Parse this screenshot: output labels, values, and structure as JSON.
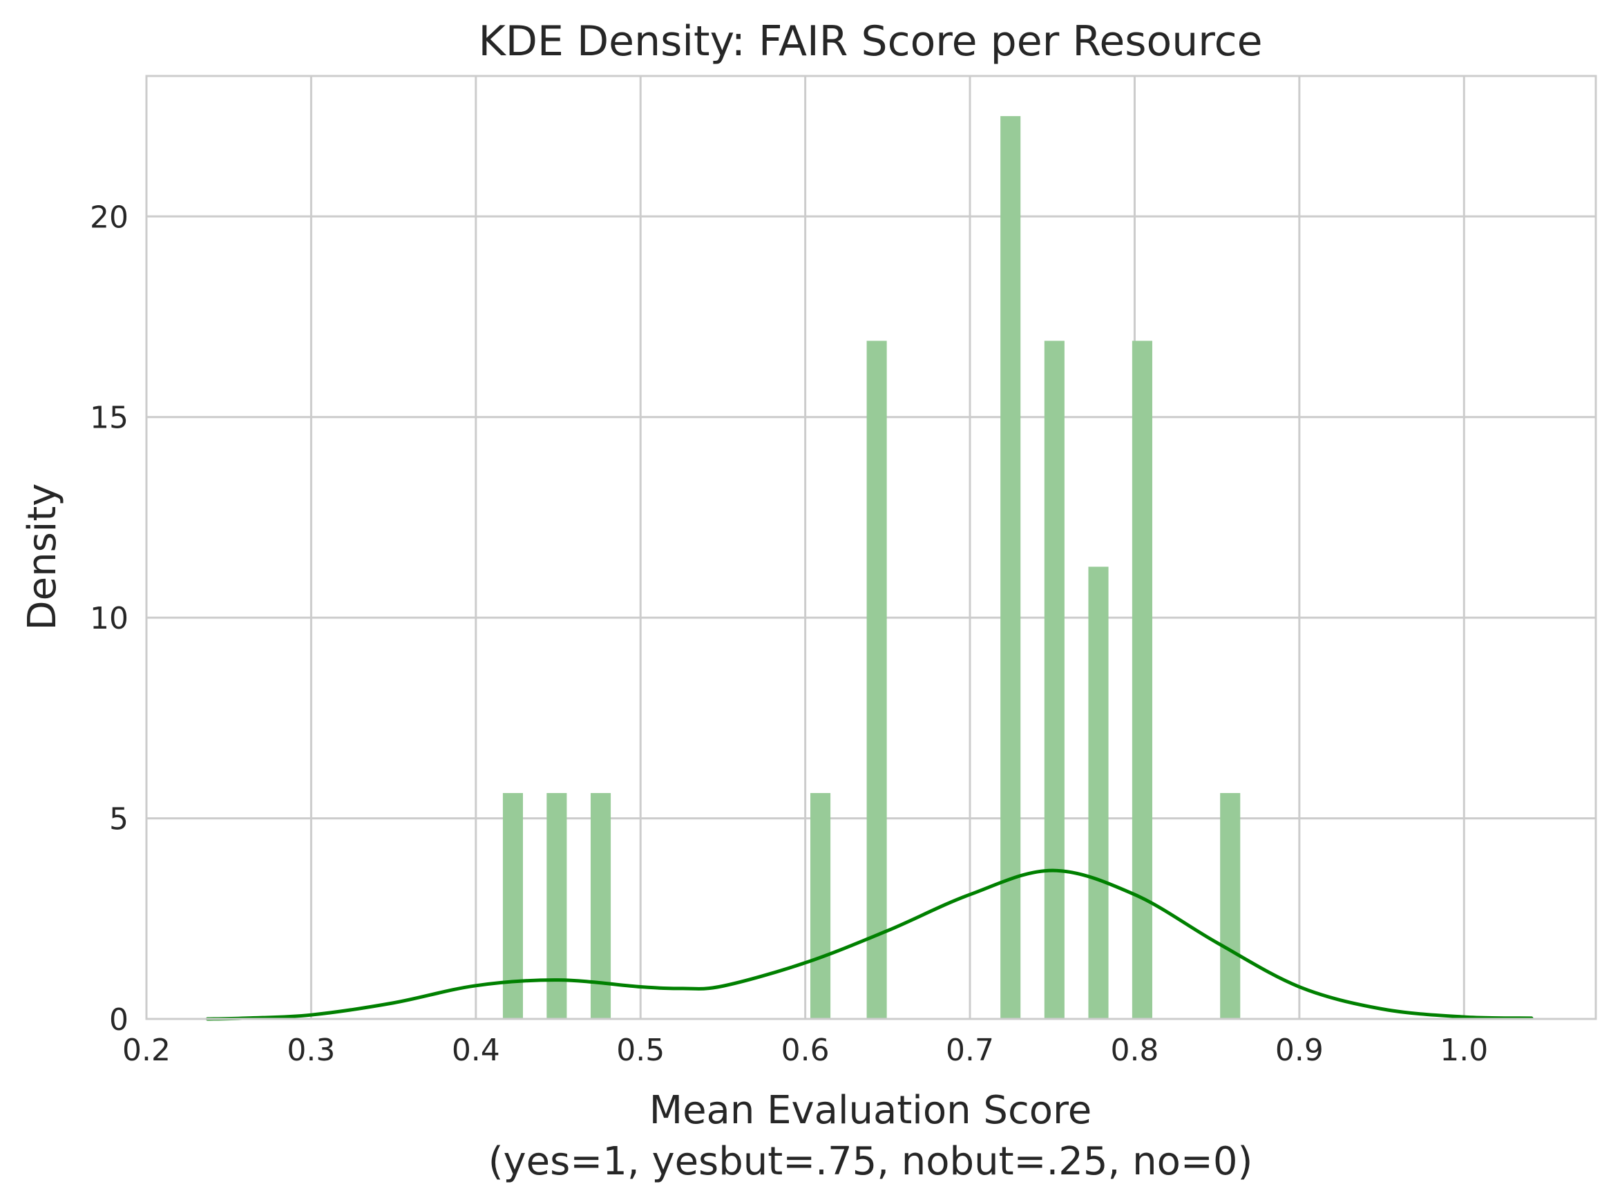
{
  "chart_data": {
    "type": "bar",
    "title": "KDE Density: FAIR Score per Resource",
    "xlabel_line1": "Mean Evaluation Score",
    "xlabel_line2": "(yes=1, yesbut=.75, nobut=.25, no=0)",
    "ylabel": "Density",
    "xlim": [
      0.2,
      1.08
    ],
    "ylim": [
      0,
      23.5
    ],
    "x_ticks": [
      "0.2",
      "0.3",
      "0.4",
      "0.5",
      "0.6",
      "0.7",
      "0.8",
      "0.9",
      "1.0"
    ],
    "y_ticks": [
      "0",
      "5",
      "10",
      "15",
      "20"
    ],
    "grid": true,
    "bar_color": "#98cb98",
    "kde_color": "#008000",
    "grid_color": "#cccccc",
    "histogram": [
      {
        "x": 0.4225,
        "y": 5.63
      },
      {
        "x": 0.4491,
        "y": 5.63
      },
      {
        "x": 0.4758,
        "y": 5.63
      },
      {
        "x": 0.6092,
        "y": 5.63
      },
      {
        "x": 0.6434,
        "y": 16.9
      },
      {
        "x": 0.7246,
        "y": 22.5
      },
      {
        "x": 0.7513,
        "y": 16.9
      },
      {
        "x": 0.778,
        "y": 11.27
      },
      {
        "x": 0.8046,
        "y": 16.9
      },
      {
        "x": 0.858,
        "y": 5.63
      }
    ],
    "kde": {
      "x": [
        0.237,
        0.26,
        0.3,
        0.35,
        0.4,
        0.45,
        0.5,
        0.525,
        0.55,
        0.6,
        0.65,
        0.7,
        0.75,
        0.8,
        0.85,
        0.9,
        0.95,
        1.0,
        1.041
      ],
      "y": [
        0.0,
        0.02,
        0.1,
        0.4,
        0.83,
        0.97,
        0.8,
        0.76,
        0.82,
        1.4,
        2.2,
        3.1,
        3.7,
        3.1,
        1.9,
        0.8,
        0.25,
        0.05,
        0.02
      ]
    }
  }
}
